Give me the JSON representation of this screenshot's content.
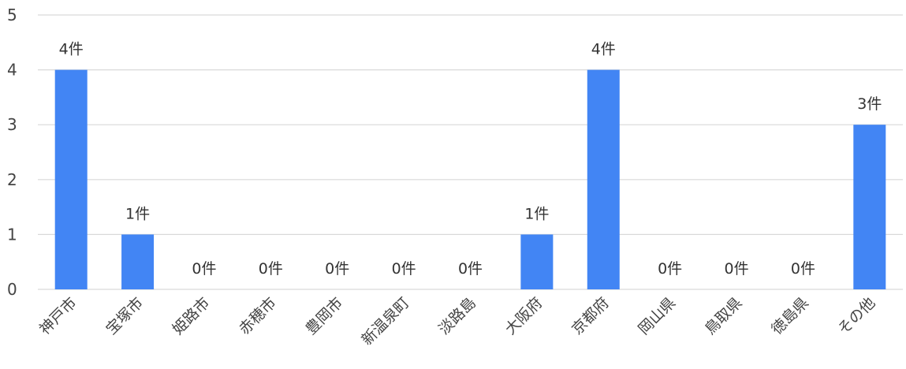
{
  "chart_data": {
    "type": "bar",
    "title": "",
    "xlabel": "",
    "ylabel": "",
    "ylim": [
      0,
      5
    ],
    "yticks": [
      0,
      1,
      2,
      3,
      4,
      5
    ],
    "grid": true,
    "legend": "none",
    "bar_color": "#4285f4",
    "categories": [
      "神戸市",
      "宝塚市",
      "姫路市",
      "赤穂市",
      "豊岡市",
      "新温泉町",
      "淡路島",
      "大阪府",
      "京都府",
      "岡山県",
      "鳥取県",
      "徳島県",
      "その他"
    ],
    "values": [
      4,
      1,
      0,
      0,
      0,
      0,
      0,
      1,
      4,
      0,
      0,
      0,
      3
    ],
    "data_labels": [
      "4件",
      "1件",
      "0件",
      "0件",
      "0件",
      "0件",
      "0件",
      "1件",
      "4件",
      "0件",
      "0件",
      "0件",
      "3件"
    ]
  }
}
